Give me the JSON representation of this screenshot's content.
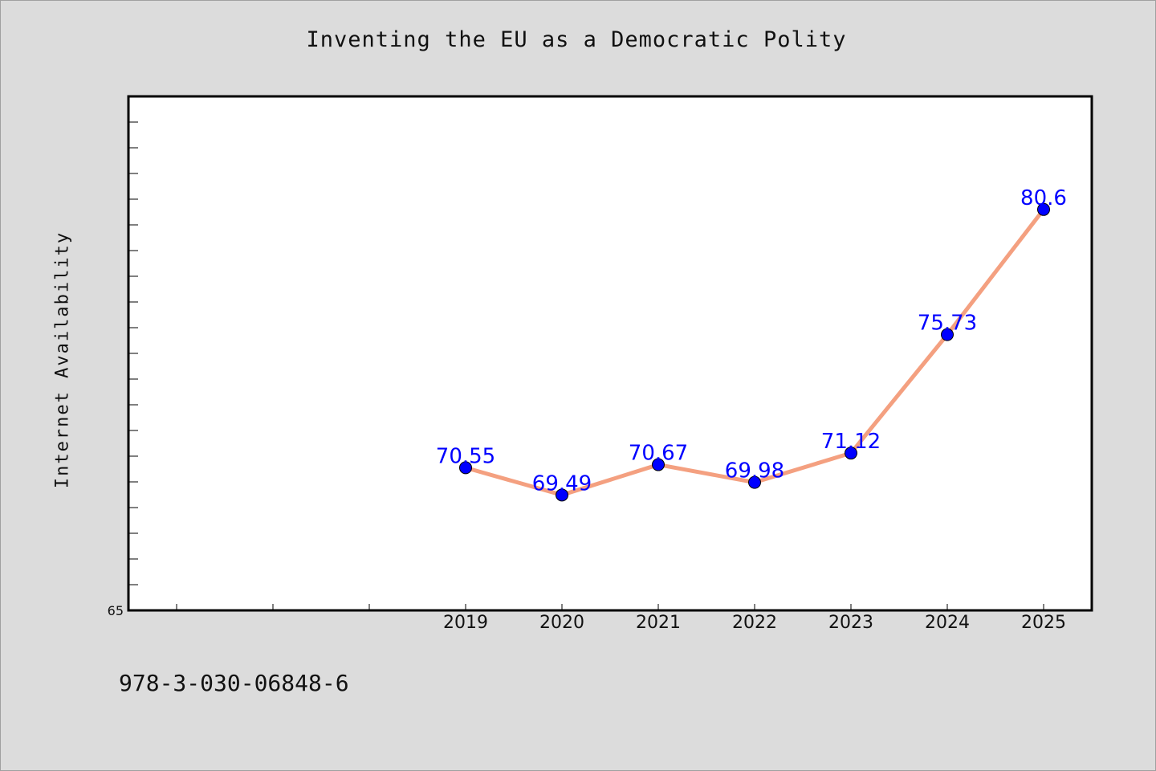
{
  "chart_data": {
    "type": "line",
    "title": "Inventing the EU as a Democratic Polity",
    "xlabel": "",
    "ylabel": "Internet Availability",
    "categories": [
      "2019",
      "2020",
      "2021",
      "2022",
      "2023",
      "2024",
      "2025"
    ],
    "series": [
      {
        "values": [
          70.55,
          69.49,
          70.67,
          69.98,
          71.12,
          75.73,
          80.6
        ],
        "labels": [
          "70.55",
          "69.49",
          "70.67",
          "69.98",
          "71.12",
          "75.73",
          "80.6"
        ]
      }
    ],
    "y_tick_labels": [
      "65"
    ],
    "ylim": [
      65,
      85
    ],
    "grid": false,
    "colors": {
      "line": "#f4a080",
      "marker": "#0000ff",
      "data_label": "#0000ff",
      "plot_background": "#ffffff",
      "page_background": "#dcdcdc"
    }
  },
  "footer": {
    "isbn": "978-3-030-06848-6"
  }
}
